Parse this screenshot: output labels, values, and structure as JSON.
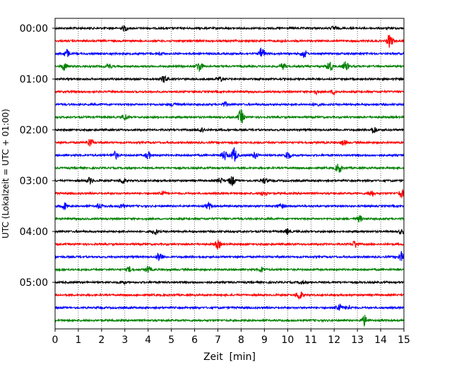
{
  "chart_data": {
    "type": "line",
    "title": "",
    "xlabel": "Zeit  [min]",
    "ylabel": "UTC (Lokalzeit = UTC + 01:00)",
    "xlim": [
      0,
      15
    ],
    "x_ticks": [
      "0",
      "1",
      "2",
      "3",
      "4",
      "5",
      "6",
      "7",
      "8",
      "9",
      "10",
      "11",
      "12",
      "13",
      "14",
      "15"
    ],
    "y_tick_labels": [
      "00:00",
      "01:00",
      "02:00",
      "03:00",
      "04:00",
      "05:00"
    ],
    "traces_per_hour": 4,
    "trace_count": 24,
    "trace_colors": [
      "#000000",
      "#ff0000",
      "#0000ff",
      "#008000"
    ],
    "grid": "vertical dotted lines at each minute",
    "events": [
      {
        "trace": 0,
        "t": 3.0,
        "amp": 0.5
      },
      {
        "trace": 0,
        "t": 12.0,
        "amp": 0.4
      },
      {
        "trace": 1,
        "t": 14.4,
        "amp": 1.3
      },
      {
        "trace": 1,
        "t": 9.8,
        "amp": 0.25
      },
      {
        "trace": 2,
        "t": 0.5,
        "amp": 0.8
      },
      {
        "trace": 2,
        "t": 8.9,
        "amp": 1.2
      },
      {
        "trace": 2,
        "t": 10.7,
        "amp": 0.8
      },
      {
        "trace": 2,
        "t": 4.5,
        "amp": 0.3
      },
      {
        "trace": 3,
        "t": 0.4,
        "amp": 0.7
      },
      {
        "trace": 3,
        "t": 6.2,
        "amp": 1.1
      },
      {
        "trace": 3,
        "t": 11.8,
        "amp": 1.1
      },
      {
        "trace": 3,
        "t": 12.5,
        "amp": 0.9
      },
      {
        "trace": 3,
        "t": 9.8,
        "amp": 0.6
      },
      {
        "trace": 3,
        "t": 2.3,
        "amp": 0.5
      },
      {
        "trace": 4,
        "t": 4.7,
        "amp": 0.7
      },
      {
        "trace": 4,
        "t": 7.1,
        "amp": 0.5
      },
      {
        "trace": 5,
        "t": 11.2,
        "amp": 0.4
      },
      {
        "trace": 5,
        "t": 12.0,
        "amp": 0.5
      },
      {
        "trace": 6,
        "t": 5.1,
        "amp": 0.4
      },
      {
        "trace": 6,
        "t": 7.3,
        "amp": 0.4
      },
      {
        "trace": 6,
        "t": 11.2,
        "amp": 0.4
      },
      {
        "trace": 7,
        "t": 8.0,
        "amp": 1.4
      },
      {
        "trace": 7,
        "t": 3.0,
        "amp": 0.6
      },
      {
        "trace": 8,
        "t": 6.3,
        "amp": 0.5
      },
      {
        "trace": 8,
        "t": 13.7,
        "amp": 0.7
      },
      {
        "trace": 9,
        "t": 1.5,
        "amp": 0.8
      },
      {
        "trace": 9,
        "t": 12.4,
        "amp": 0.5
      },
      {
        "trace": 10,
        "t": 7.7,
        "amp": 1.5
      },
      {
        "trace": 10,
        "t": 7.3,
        "amp": 0.9
      },
      {
        "trace": 10,
        "t": 2.6,
        "amp": 0.7
      },
      {
        "trace": 10,
        "t": 4.0,
        "amp": 0.7
      },
      {
        "trace": 10,
        "t": 10.0,
        "amp": 0.8
      },
      {
        "trace": 10,
        "t": 8.6,
        "amp": 0.6
      },
      {
        "trace": 11,
        "t": 12.2,
        "amp": 1.0
      },
      {
        "trace": 12,
        "t": 1.5,
        "amp": 0.6
      },
      {
        "trace": 12,
        "t": 2.9,
        "amp": 0.6
      },
      {
        "trace": 12,
        "t": 7.6,
        "amp": 1.0
      },
      {
        "trace": 12,
        "t": 7.1,
        "amp": 0.5
      },
      {
        "trace": 12,
        "t": 9.0,
        "amp": 0.5
      },
      {
        "trace": 13,
        "t": 4.6,
        "amp": 0.5
      },
      {
        "trace": 13,
        "t": 9.0,
        "amp": 0.5
      },
      {
        "trace": 13,
        "t": 13.6,
        "amp": 0.6
      },
      {
        "trace": 13,
        "t": 14.9,
        "amp": 0.8
      },
      {
        "trace": 14,
        "t": 0.4,
        "amp": 0.7
      },
      {
        "trace": 14,
        "t": 1.9,
        "amp": 0.5
      },
      {
        "trace": 14,
        "t": 2.9,
        "amp": 0.6
      },
      {
        "trace": 14,
        "t": 6.6,
        "amp": 0.6
      },
      {
        "trace": 14,
        "t": 9.7,
        "amp": 0.6
      },
      {
        "trace": 15,
        "t": 13.1,
        "amp": 0.6
      },
      {
        "trace": 16,
        "t": 4.3,
        "amp": 0.6
      },
      {
        "trace": 16,
        "t": 10.0,
        "amp": 0.5
      },
      {
        "trace": 16,
        "t": 14.9,
        "amp": 0.4
      },
      {
        "trace": 17,
        "t": 7.0,
        "amp": 0.8
      },
      {
        "trace": 17,
        "t": 12.9,
        "amp": 0.7
      },
      {
        "trace": 18,
        "t": 4.5,
        "amp": 1.0
      },
      {
        "trace": 18,
        "t": 14.9,
        "amp": 1.1
      },
      {
        "trace": 19,
        "t": 4.0,
        "amp": 0.6
      },
      {
        "trace": 19,
        "t": 3.2,
        "amp": 0.5
      },
      {
        "trace": 19,
        "t": 8.9,
        "amp": 0.5
      },
      {
        "trace": 20,
        "t": 2.9,
        "amp": 0.3
      },
      {
        "trace": 20,
        "t": 10.6,
        "amp": 0.3
      },
      {
        "trace": 21,
        "t": 10.5,
        "amp": 1.0
      },
      {
        "trace": 22,
        "t": 12.2,
        "amp": 0.9
      },
      {
        "trace": 22,
        "t": 12.6,
        "amp": 0.5
      },
      {
        "trace": 23,
        "t": 13.3,
        "amp": 1.0
      }
    ]
  }
}
